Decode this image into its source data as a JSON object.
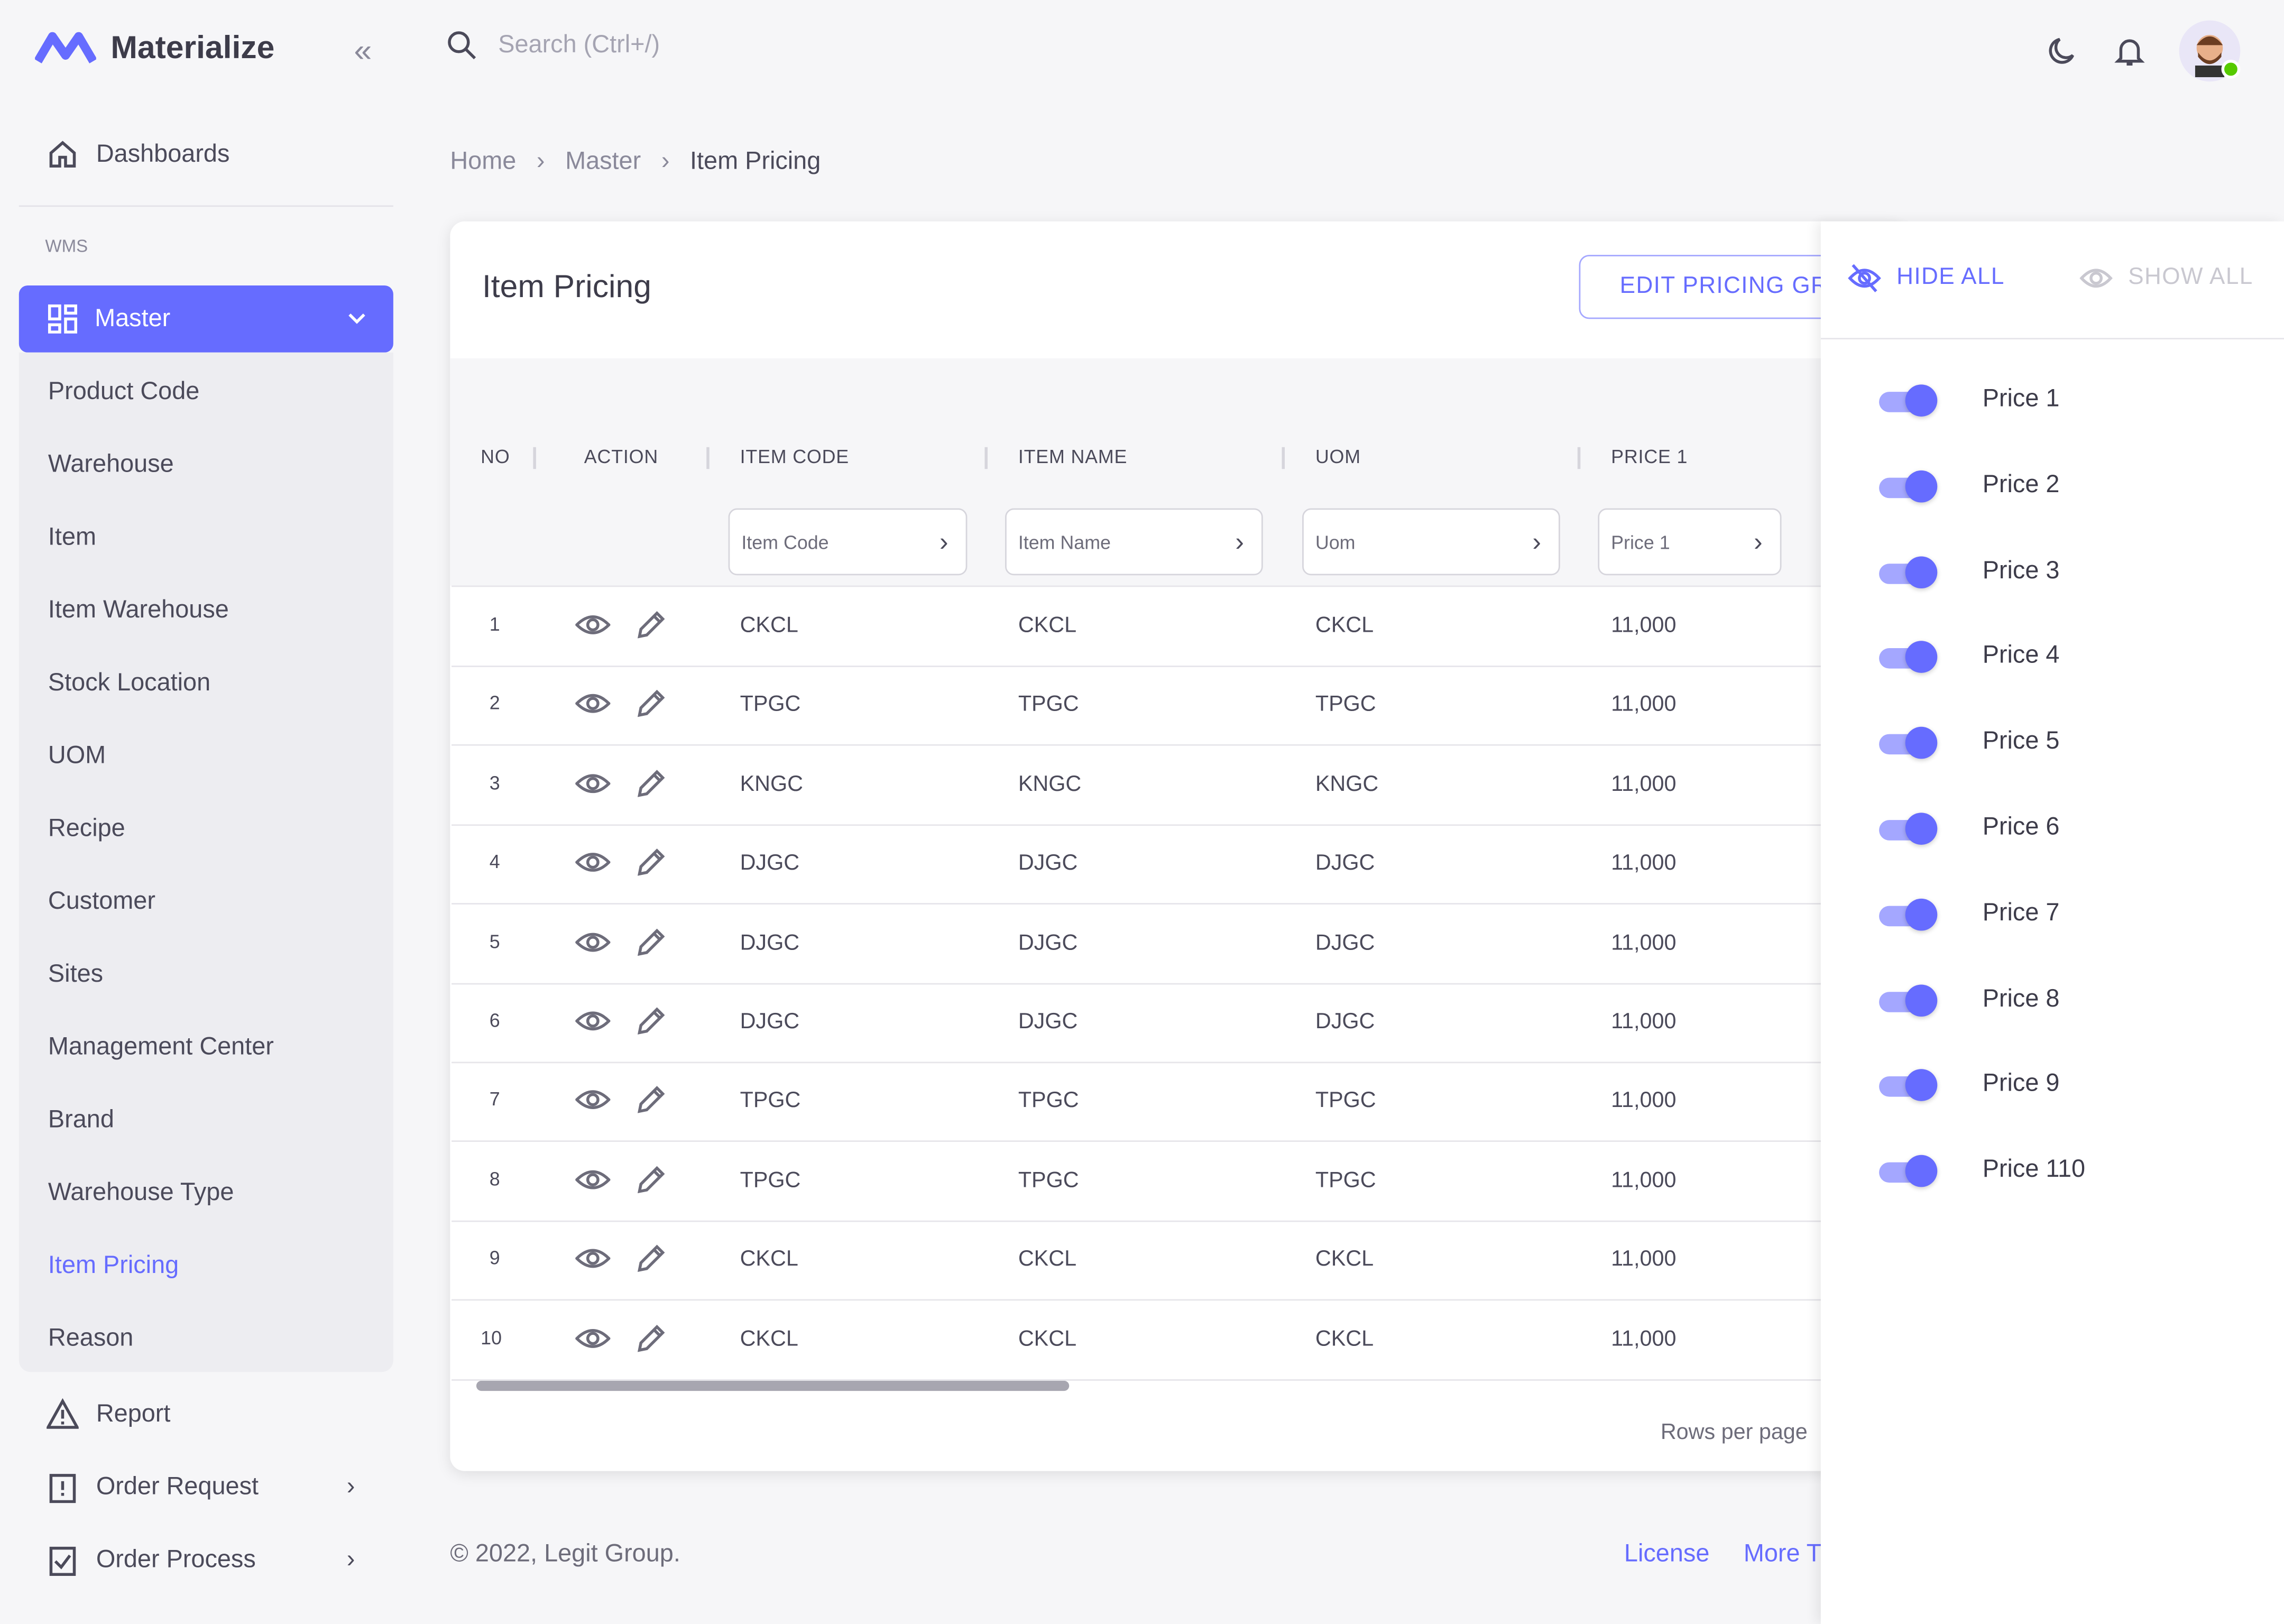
{
  "app": {
    "name": "Materialize"
  },
  "search": {
    "placeholder": "Search (Ctrl+/)"
  },
  "sidebar": {
    "dashboards": "Dashboards",
    "section": "WMS",
    "master": "Master",
    "sub_items": [
      "Product Code",
      "Warehouse",
      "Item",
      "Item Warehouse",
      "Stock Location",
      "UOM",
      "Recipe",
      "Customer",
      "Sites",
      "Management Center",
      "Brand",
      "Warehouse Type",
      "Item Pricing",
      "Reason"
    ],
    "active_sub": "Item Pricing",
    "report": "Report",
    "order_request": "Order Request",
    "order_process": "Order Process"
  },
  "breadcrumb": [
    "Home",
    "Master",
    "Item Pricing"
  ],
  "card": {
    "title": "Item Pricing",
    "edit_button": "EDIT PRICING GR",
    "columns": [
      "NO",
      "ACTION",
      "ITEM CODE",
      "ITEM NAME",
      "UOM",
      "PRICE 1"
    ],
    "filters": [
      "Item Code",
      "Item Name",
      "Uom",
      "Price 1"
    ],
    "rows": [
      {
        "no": "1",
        "code": "CKCL",
        "name": "CKCL",
        "uom": "CKCL",
        "price": "11,000"
      },
      {
        "no": "2",
        "code": "TPGC",
        "name": "TPGC",
        "uom": "TPGC",
        "price": "11,000"
      },
      {
        "no": "3",
        "code": "KNGC",
        "name": "KNGC",
        "uom": "KNGC",
        "price": "11,000"
      },
      {
        "no": "4",
        "code": "DJGC",
        "name": "DJGC",
        "uom": "DJGC",
        "price": "11,000"
      },
      {
        "no": "5",
        "code": "DJGC",
        "name": "DJGC",
        "uom": "DJGC",
        "price": "11,000"
      },
      {
        "no": "6",
        "code": "DJGC",
        "name": "DJGC",
        "uom": "DJGC",
        "price": "11,000"
      },
      {
        "no": "7",
        "code": "TPGC",
        "name": "TPGC",
        "uom": "TPGC",
        "price": "11,000"
      },
      {
        "no": "8",
        "code": "TPGC",
        "name": "TPGC",
        "uom": "TPGC",
        "price": "11,000"
      },
      {
        "no": "9",
        "code": "CKCL",
        "name": "CKCL",
        "uom": "CKCL",
        "price": "11,000"
      },
      {
        "no": "10",
        "code": "CKCL",
        "name": "CKCL",
        "uom": "CKCL",
        "price": "11,000"
      }
    ],
    "rows_per_page": "Rows per page"
  },
  "footer": {
    "copyright": "© 2022, Legit Group.",
    "license": "License",
    "more": "More T"
  },
  "panel": {
    "hide_all": "HIDE ALL",
    "show_all": "SHOW ALL",
    "columns": [
      {
        "label": "Price 1",
        "on": true
      },
      {
        "label": "Price 2",
        "on": true
      },
      {
        "label": "Price 3",
        "on": true
      },
      {
        "label": "Price 4",
        "on": true
      },
      {
        "label": "Price 5",
        "on": true
      },
      {
        "label": "Price 6",
        "on": true
      },
      {
        "label": "Price 7",
        "on": true
      },
      {
        "label": "Price 8",
        "on": true
      },
      {
        "label": "Price 9",
        "on": true
      },
      {
        "label": "Price 110",
        "on": true
      }
    ]
  },
  "colors": {
    "primary": "#666cff",
    "online": "#56ca00"
  }
}
